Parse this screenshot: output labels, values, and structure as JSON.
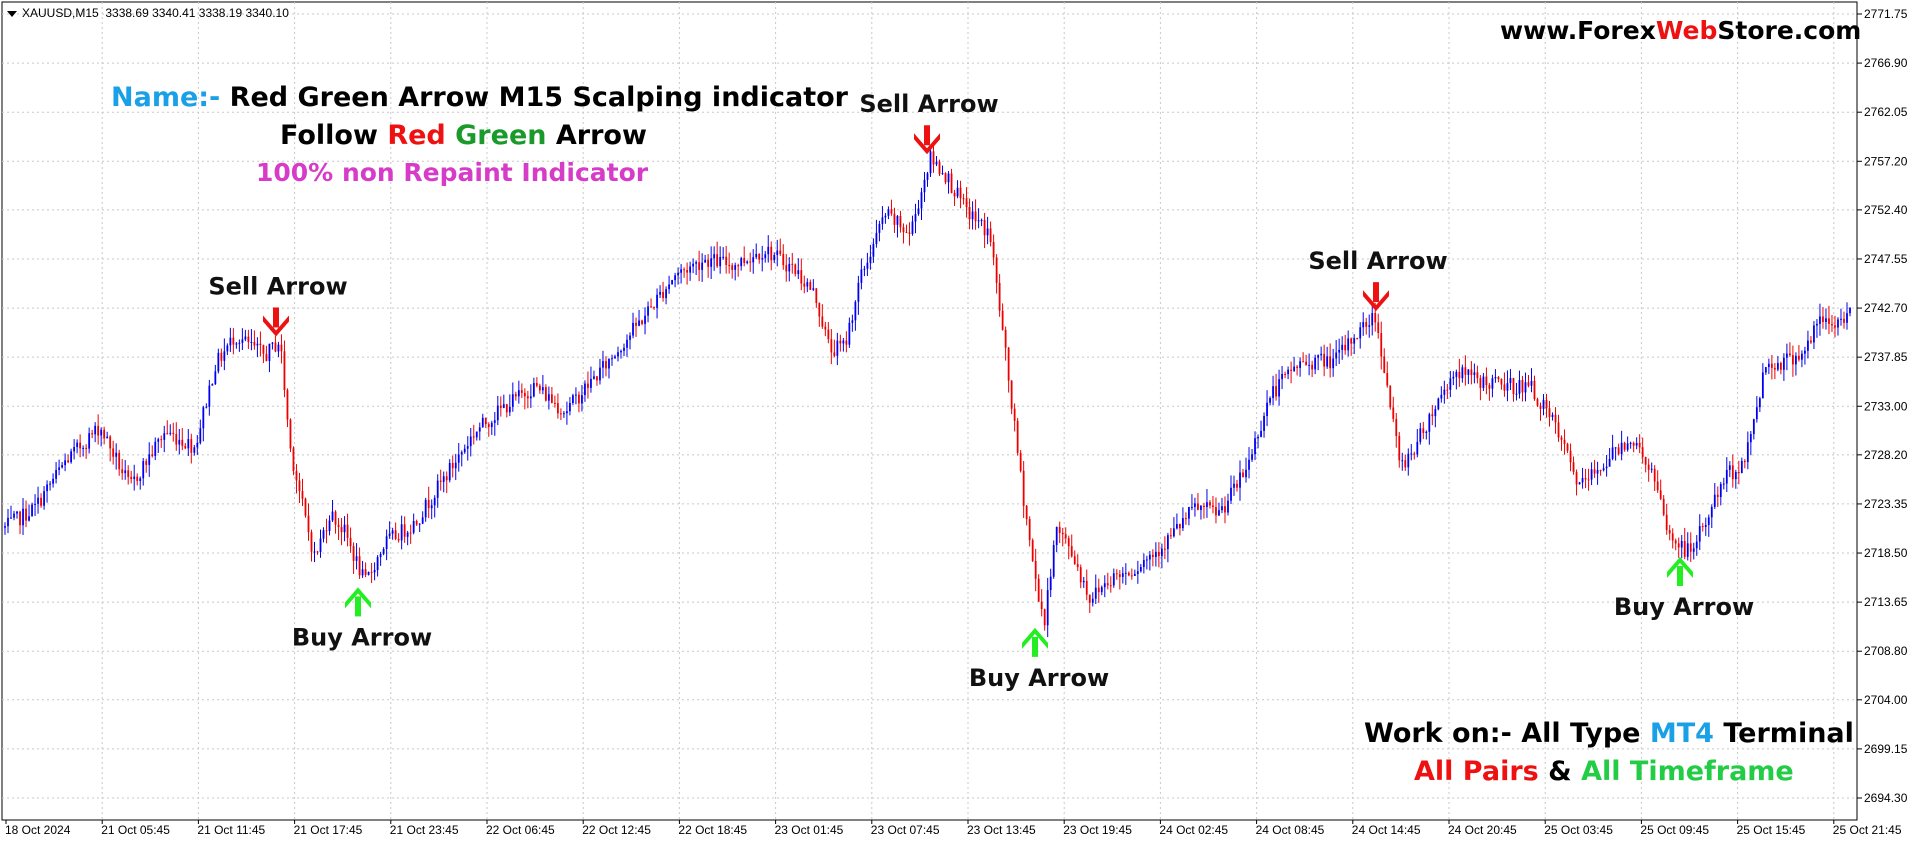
{
  "symbol": {
    "label": "XAUUSD,M15",
    "ohlc": "3338.69 3340.41 3338.19 3340.10"
  },
  "website": {
    "part1": "www.Forex",
    "part2": "Web",
    "part3": "Store.com"
  },
  "info": {
    "name_prefix": "Name:-",
    "name_text": " Red Green Arrow M15 Scalping indicator",
    "follow_1": "Follow ",
    "follow_red": "Red",
    "follow_green": " Green",
    "follow_3": " Arrow",
    "repaint": "100% non Repaint Indicator"
  },
  "work": {
    "line1_a": "Work on:- All Type ",
    "line1_mt4": "MT4",
    "line1_b": " Terminal",
    "line2_all": "All  Pairs",
    "line2_amp": " & ",
    "line2_tf": "All Timeframe"
  },
  "colors": {
    "bull": "#0000ee",
    "bear": "#ee0000",
    "sell_arrow": "#ee1111",
    "buy_arrow": "#22ee22",
    "name_prefix": "#1aa0e6",
    "red": "#ee1111",
    "green": "#1a9a2a",
    "magenta": "#d63cc8",
    "mt4": "#1aa0e6",
    "tf_green": "#22cc44"
  },
  "chart_data": {
    "type": "candlestick",
    "ylim": [
      2692.3,
      2772.0
    ],
    "y_ticks": [
      "2771.75",
      "2766.90",
      "2762.05",
      "2757.20",
      "2752.40",
      "2747.55",
      "2742.70",
      "2737.85",
      "2733.00",
      "2728.20",
      "2723.35",
      "2718.50",
      "2713.65",
      "2708.80",
      "2704.00",
      "2699.15",
      "2694.30"
    ],
    "x_ticks": [
      "18 Oct 2024",
      "21 Oct 05:45",
      "21 Oct 11:45",
      "21 Oct 17:45",
      "21 Oct 23:45",
      "22 Oct 06:45",
      "22 Oct 12:45",
      "22 Oct 18:45",
      "23 Oct 01:45",
      "23 Oct 07:45",
      "23 Oct 13:45",
      "23 Oct 19:45",
      "24 Oct 02:45",
      "24 Oct 08:45",
      "24 Oct 14:45",
      "24 Oct 20:45",
      "25 Oct 03:45",
      "25 Oct 09:45",
      "25 Oct 15:45",
      "25 Oct 21:45"
    ],
    "price_path": [
      [
        0,
        2721.0
      ],
      [
        30,
        2723.0
      ],
      [
        60,
        2727.5
      ],
      [
        95,
        2731.0
      ],
      [
        125,
        2725.0
      ],
      [
        160,
        2730.5
      ],
      [
        190,
        2729.0
      ],
      [
        210,
        2737.0
      ],
      [
        230,
        2740.0
      ],
      [
        245,
        2739.0
      ],
      [
        260,
        2738.0
      ],
      [
        275,
        2739.5
      ],
      [
        285,
        2729.0
      ],
      [
        300,
        2722.0
      ],
      [
        310,
        2718.0
      ],
      [
        325,
        2722.5
      ],
      [
        340,
        2720.5
      ],
      [
        360,
        2715.5
      ],
      [
        380,
        2719.5
      ],
      [
        410,
        2721.5
      ],
      [
        440,
        2726.0
      ],
      [
        470,
        2730.5
      ],
      [
        500,
        2733.0
      ],
      [
        530,
        2735.0
      ],
      [
        560,
        2732.5
      ],
      [
        600,
        2737.0
      ],
      [
        640,
        2742.0
      ],
      [
        670,
        2746.0
      ],
      [
        700,
        2747.5
      ],
      [
        730,
        2747.0
      ],
      [
        760,
        2748.5
      ],
      [
        790,
        2746.5
      ],
      [
        810,
        2744.0
      ],
      [
        825,
        2738.5
      ],
      [
        840,
        2739.0
      ],
      [
        855,
        2745.5
      ],
      [
        880,
        2752.0
      ],
      [
        905,
        2750.0
      ],
      [
        925,
        2757.5
      ],
      [
        940,
        2756.0
      ],
      [
        960,
        2752.5
      ],
      [
        985,
        2750.0
      ],
      [
        1000,
        2738.5
      ],
      [
        1015,
        2726.5
      ],
      [
        1030,
        2716.0
      ],
      [
        1040,
        2711.5
      ],
      [
        1050,
        2721.0
      ],
      [
        1065,
        2719.0
      ],
      [
        1085,
        2714.0
      ],
      [
        1105,
        2716.0
      ],
      [
        1130,
        2717.0
      ],
      [
        1160,
        2719.5
      ],
      [
        1190,
        2723.0
      ],
      [
        1215,
        2722.5
      ],
      [
        1240,
        2726.5
      ],
      [
        1265,
        2734.0
      ],
      [
        1290,
        2737.0
      ],
      [
        1310,
        2737.5
      ],
      [
        1330,
        2737.5
      ],
      [
        1350,
        2740.0
      ],
      [
        1370,
        2742.0
      ],
      [
        1380,
        2736.5
      ],
      [
        1395,
        2727.0
      ],
      [
        1410,
        2729.0
      ],
      [
        1430,
        2733.0
      ],
      [
        1450,
        2736.5
      ],
      [
        1475,
        2735.5
      ],
      [
        1500,
        2735.0
      ],
      [
        1525,
        2735.0
      ],
      [
        1550,
        2731.0
      ],
      [
        1575,
        2725.0
      ],
      [
        1600,
        2727.5
      ],
      [
        1625,
        2730.0
      ],
      [
        1645,
        2727.0
      ],
      [
        1665,
        2720.0
      ],
      [
        1685,
        2718.5
      ],
      [
        1700,
        2721.5
      ],
      [
        1720,
        2726.0
      ],
      [
        1740,
        2727.5
      ],
      [
        1760,
        2737.0
      ],
      [
        1780,
        2737.5
      ],
      [
        1800,
        2738.5
      ],
      [
        1815,
        2741.5
      ],
      [
        1830,
        2741.0
      ],
      [
        1845,
        2742.5
      ]
    ],
    "arrows": [
      {
        "type": "sell",
        "label": "Sell Arrow",
        "at": "21 Oct 14:45",
        "price": 2739.5
      },
      {
        "type": "buy",
        "label": "Buy Arrow",
        "at": "21 Oct 20:45",
        "price": 2715.5
      },
      {
        "type": "sell",
        "label": "Sell Arrow",
        "at": "23 Oct 09:15",
        "price": 2757.5
      },
      {
        "type": "buy",
        "label": "Buy Arrow",
        "at": "23 Oct 16:45",
        "price": 2711.5
      },
      {
        "type": "sell",
        "label": "Sell Arrow",
        "at": "24 Oct 14:45",
        "price": 2742.0
      },
      {
        "type": "buy",
        "label": "Buy Arrow",
        "at": "25 Oct 12:15",
        "price": 2718.5
      }
    ],
    "grid": true
  }
}
